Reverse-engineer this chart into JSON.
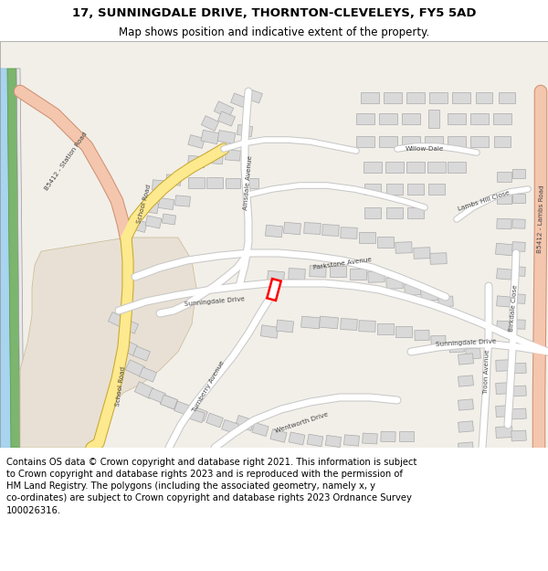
{
  "title_line1": "17, SUNNINGDALE DRIVE, THORNTON-CLEVELEYS, FY5 5AD",
  "title_line2": "Map shows position and indicative extent of the property.",
  "footer": "Contains OS data © Crown copyright and database right 2021. This information is subject\nto Crown copyright and database rights 2023 and is reproduced with the permission of\nHM Land Registry. The polygons (including the associated geometry, namely x, y\nco-ordinates) are subject to Crown copyright and database rights 2023 Ordnance Survey\n100026316.",
  "title_fontsize": 9.5,
  "subtitle_fontsize": 8.5,
  "footer_fontsize": 7.2,
  "map_bg": "#f2efe9",
  "road_color": "#ffffff",
  "road_outline": "#c8c8c8",
  "building_color": "#d9d9d9",
  "building_outline": "#aaaaaa",
  "highlight_color": "#ff0000",
  "b5412_color": "#f4c6ae",
  "school_road_color": "#fde98e",
  "green_color": "#7bb56e",
  "blue_color": "#a8d4ef",
  "beige_color": "#e8e0d4"
}
